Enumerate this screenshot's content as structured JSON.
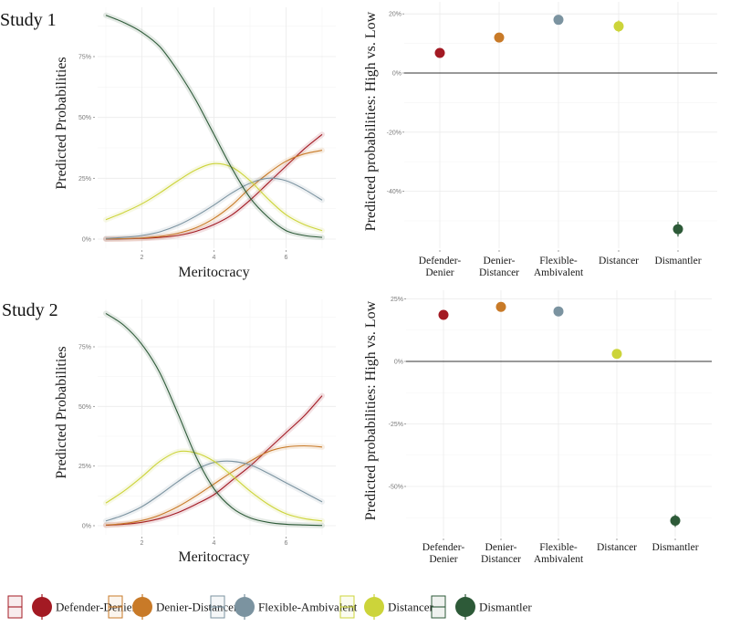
{
  "study_labels": [
    "Study 1",
    "Study 2"
  ],
  "legend": [
    {
      "label": "Defender-Denier",
      "color": "#a31a23"
    },
    {
      "label": "Denier-Distancer",
      "color": "#c87a28"
    },
    {
      "label": "Flexible-Ambivalent",
      "color": "#7b93a0"
    },
    {
      "label": "Distancer",
      "color": "#ccd43a"
    },
    {
      "label": "Dismantler",
      "color": "#2d5a38"
    }
  ],
  "chart_data": [
    {
      "id": "study1-curves",
      "type": "line",
      "title": "Study 1",
      "xlabel": "Meritocracy",
      "ylabel": "Predicted Probabilities",
      "xlim": [
        1,
        7
      ],
      "ylim": [
        0,
        0.95
      ],
      "xticks": [
        2,
        4,
        6
      ],
      "xtick_labels": [
        "2",
        "4",
        "6"
      ],
      "yticks": [
        0,
        0.25,
        0.5,
        0.75
      ],
      "ytick_labels": [
        "0%",
        "25%",
        "50%",
        "75%"
      ],
      "grid": true,
      "x": [
        1,
        1.5,
        2,
        2.5,
        3,
        3.5,
        4,
        4.5,
        5,
        5.5,
        6,
        6.5,
        7
      ],
      "series": [
        {
          "name": "Defender-Denier",
          "values": [
            0.0,
            0.001,
            0.003,
            0.007,
            0.015,
            0.032,
            0.06,
            0.1,
            0.16,
            0.23,
            0.3,
            0.37,
            0.43
          ]
        },
        {
          "name": "Denier-Distancer",
          "values": [
            0.001,
            0.002,
            0.005,
            0.011,
            0.024,
            0.047,
            0.085,
            0.14,
            0.21,
            0.27,
            0.32,
            0.35,
            0.365
          ]
        },
        {
          "name": "Flexible-Ambivalent",
          "values": [
            0.003,
            0.007,
            0.015,
            0.03,
            0.057,
            0.095,
            0.14,
            0.19,
            0.23,
            0.25,
            0.24,
            0.205,
            0.16
          ]
        },
        {
          "name": "Distancer",
          "values": [
            0.08,
            0.11,
            0.145,
            0.19,
            0.24,
            0.285,
            0.31,
            0.295,
            0.24,
            0.165,
            0.1,
            0.06,
            0.035
          ]
        },
        {
          "name": "Dismantler",
          "values": [
            0.92,
            0.89,
            0.85,
            0.79,
            0.69,
            0.57,
            0.43,
            0.29,
            0.17,
            0.09,
            0.035,
            0.015,
            0.007
          ]
        }
      ]
    },
    {
      "id": "study1-points",
      "type": "scatter",
      "title": "Study 1",
      "xlabel": "",
      "ylabel": "Predicted probabilities: High vs. Low",
      "categories": [
        "Defender-\nDenier",
        "Denier-\nDistancer",
        "Flexible-\nAmbivalent",
        "Distancer",
        "Dismantler"
      ],
      "ylim": [
        -0.58,
        0.21
      ],
      "yticks": [
        0.2,
        0,
        -0.2,
        -0.4
      ],
      "ytick_labels": [
        "20%",
        "0%",
        "-20%",
        "-40%"
      ],
      "grid": true,
      "reference_line": 0,
      "values": [
        0.068,
        0.12,
        0.18,
        0.158,
        -0.528
      ],
      "errors": [
        0.005,
        0.005,
        0.005,
        0.02,
        0.025
      ]
    },
    {
      "id": "study2-curves",
      "type": "line",
      "title": "Study 2",
      "xlabel": "Meritocracy",
      "ylabel": "Predicted Probabilities",
      "xlim": [
        1,
        7
      ],
      "ylim": [
        0,
        0.93
      ],
      "xticks": [
        2,
        4,
        6
      ],
      "xtick_labels": [
        "2",
        "4",
        "6"
      ],
      "yticks": [
        0,
        0.25,
        0.5,
        0.75
      ],
      "ytick_labels": [
        "0%",
        "25%",
        "50%",
        "75%"
      ],
      "grid": true,
      "x": [
        1,
        1.5,
        2,
        2.5,
        3,
        3.5,
        4,
        4.5,
        5,
        5.5,
        6,
        6.5,
        7
      ],
      "series": [
        {
          "name": "Defender-Denier",
          "values": [
            0.002,
            0.006,
            0.014,
            0.03,
            0.055,
            0.09,
            0.13,
            0.19,
            0.25,
            0.32,
            0.39,
            0.46,
            0.545
          ]
        },
        {
          "name": "Denier-Distancer",
          "values": [
            0.003,
            0.009,
            0.022,
            0.045,
            0.08,
            0.125,
            0.175,
            0.225,
            0.27,
            0.31,
            0.33,
            0.335,
            0.33
          ]
        },
        {
          "name": "Flexible-Ambivalent",
          "values": [
            0.02,
            0.045,
            0.08,
            0.13,
            0.185,
            0.235,
            0.265,
            0.27,
            0.255,
            0.22,
            0.18,
            0.14,
            0.1
          ]
        },
        {
          "name": "Distancer",
          "values": [
            0.095,
            0.145,
            0.205,
            0.27,
            0.31,
            0.305,
            0.27,
            0.21,
            0.145,
            0.09,
            0.05,
            0.03,
            0.02
          ]
        },
        {
          "name": "Dismantler",
          "values": [
            0.89,
            0.84,
            0.76,
            0.64,
            0.47,
            0.29,
            0.155,
            0.075,
            0.033,
            0.014,
            0.006,
            0.003,
            0.001
          ]
        }
      ]
    },
    {
      "id": "study2-points",
      "type": "scatter",
      "title": "Study 2",
      "xlabel": "",
      "ylabel": "Predicted probabilities: High vs. Low",
      "categories": [
        "Defender-\nDenier",
        "Denier-\nDistancer",
        "Flexible-\nAmbivalent",
        "Distancer",
        "Dismantler"
      ],
      "ylim": [
        -0.7,
        0.26
      ],
      "yticks": [
        0.25,
        0,
        -0.25,
        -0.5
      ],
      "ytick_labels": [
        "25%",
        "0%",
        "-25%",
        "-50%"
      ],
      "grid": true,
      "reference_line": 0,
      "values": [
        0.186,
        0.218,
        0.2,
        0.03,
        -0.637
      ],
      "errors": [
        0.005,
        0.005,
        0.005,
        0.012,
        0.025
      ]
    }
  ]
}
